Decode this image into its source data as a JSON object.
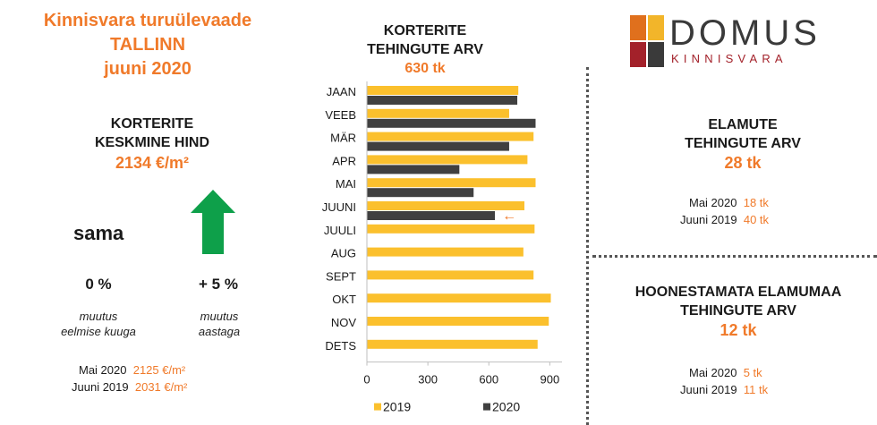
{
  "header": {
    "line1": "Kinnisvara turuülevaade",
    "line2": "TALLINN",
    "line3": "juuni 2020"
  },
  "left": {
    "head1": "KORTERITE",
    "head2": "KESKMINE HIND",
    "price": "2134 €/m²",
    "status_word": "sama",
    "monthly_change": "0 %",
    "monthly_caption1": "muutus",
    "monthly_caption2": "eelmise kuuga",
    "yearly_change": "+ 5 %",
    "yearly_caption1": "muutus",
    "yearly_caption2": "aastaga",
    "arrow_icon": "up-arrow-icon",
    "arrow_color": "#0ea04a",
    "history": [
      {
        "label": "Mai 2020",
        "value": "2125 €/m²"
      },
      {
        "label": "Juuni 2019",
        "value": "2031 €/m²"
      }
    ]
  },
  "logo": {
    "name": "DOMUS",
    "sub": "KINNISVARA",
    "colors": [
      "#e0701d",
      "#f2b52a",
      "#a3212a",
      "#3a3a3a"
    ]
  },
  "right_top": {
    "head1": "ELAMUTE",
    "head2": "TEHINGUTE ARV",
    "value": "28 tk",
    "rows": [
      {
        "label": "Mai 2020",
        "value": "18 tk"
      },
      {
        "label": "Juuni 2019",
        "value": "40 tk"
      }
    ]
  },
  "right_bottom": {
    "head1": "HOONESTAMATA ELAMUMAA",
    "head2": "TEHINGUTE ARV",
    "value": "12 tk",
    "rows": [
      {
        "label": "Mai 2020",
        "value": "5 tk"
      },
      {
        "label": "Juuni 2019",
        "value": "11 tk"
      }
    ]
  },
  "chart_data": {
    "type": "bar",
    "orientation": "horizontal",
    "title_line1": "KORTERITE",
    "title_line2": "TEHINGUTE ARV",
    "title_value": "630 tk",
    "categories": [
      "JAAN",
      "VEEB",
      "MÄR",
      "APR",
      "MAI",
      "JUUNI",
      "JUULI",
      "AUG",
      "SEPT",
      "OKT",
      "NOV",
      "DETS"
    ],
    "series": [
      {
        "name": "2019",
        "color": "#fbc02d",
        "values": [
          745,
          700,
          820,
          790,
          830,
          775,
          825,
          770,
          820,
          905,
          895,
          840
        ]
      },
      {
        "name": "2020",
        "color": "#404040",
        "values": [
          740,
          830,
          700,
          455,
          525,
          630,
          null,
          null,
          null,
          null,
          null,
          null
        ]
      }
    ],
    "xlim": [
      0,
      960
    ],
    "xticks": [
      0,
      300,
      600,
      900
    ],
    "xtick_labels": [
      "0",
      "300",
      "600",
      "900"
    ],
    "highlight_marker": "←",
    "highlight_category": "JUUNI",
    "highlight_color": "#f07a2a",
    "legend_position": "bottom",
    "grid": false
  }
}
